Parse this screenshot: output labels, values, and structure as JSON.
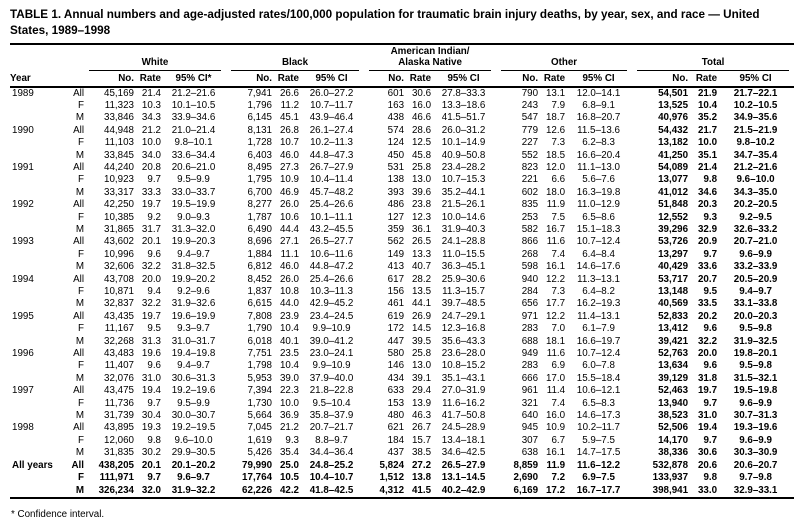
{
  "title": "TABLE 1. Annual numbers and age-adjusted rates/100,000 population for traumatic brain injury deaths, by year, sex, and race — United States, 1989–1998",
  "footnote": "* Confidence interval.",
  "colors": {
    "text": "#000000",
    "background": "#ffffff",
    "rule": "#000000"
  },
  "headers": {
    "year": "Year",
    "no": "No.",
    "rate": "Rate"
  },
  "groups": [
    {
      "label": "White",
      "ci_label": "95% CI*"
    },
    {
      "label": "Black",
      "ci_label": "95% CI"
    },
    {
      "label": "American Indian/\nAlaska Native",
      "ci_label": "95% CI"
    },
    {
      "label": "Other",
      "ci_label": "95% CI"
    },
    {
      "label": "Total",
      "ci_label": "95% CI"
    }
  ],
  "rows": [
    {
      "year": "1989",
      "sex": "All",
      "bold": false,
      "cells": [
        "45,169",
        "21.4",
        "21.2–21.6",
        "7,941",
        "26.6",
        "26.0–27.2",
        "601",
        "30.6",
        "27.8–33.3",
        "790",
        "13.1",
        "12.0–14.1",
        "54,501",
        "21.9",
        "21.7–22.1"
      ]
    },
    {
      "year": "",
      "sex": "F",
      "bold": false,
      "cells": [
        "11,323",
        "10.3",
        "10.1–10.5",
        "1,796",
        "11.2",
        "10.7–11.7",
        "163",
        "16.0",
        "13.3–18.6",
        "243",
        "7.9",
        "6.8–9.1",
        "13,525",
        "10.4",
        "10.2–10.5"
      ]
    },
    {
      "year": "",
      "sex": "M",
      "bold": false,
      "cells": [
        "33,846",
        "34.3",
        "33.9–34.6",
        "6,145",
        "45.1",
        "43.9–46.4",
        "438",
        "46.6",
        "41.5–51.7",
        "547",
        "18.7",
        "16.8–20.7",
        "40,976",
        "35.2",
        "34.9–35.6"
      ]
    },
    {
      "year": "1990",
      "sex": "All",
      "bold": false,
      "cells": [
        "44,948",
        "21.2",
        "21.0–21.4",
        "8,131",
        "26.8",
        "26.1–27.4",
        "574",
        "28.6",
        "26.0–31.2",
        "779",
        "12.6",
        "11.5–13.6",
        "54,432",
        "21.7",
        "21.5–21.9"
      ]
    },
    {
      "year": "",
      "sex": "F",
      "bold": false,
      "cells": [
        "11,103",
        "10.0",
        "9.8–10.1",
        "1,728",
        "10.7",
        "10.2–11.3",
        "124",
        "12.5",
        "10.1–14.9",
        "227",
        "7.3",
        "6.2–8.3",
        "13,182",
        "10.0",
        "9.8–10.2"
      ]
    },
    {
      "year": "",
      "sex": "M",
      "bold": false,
      "cells": [
        "33,845",
        "34.0",
        "33.6–34.4",
        "6,403",
        "46.0",
        "44.8–47.3",
        "450",
        "45.8",
        "40.9–50.8",
        "552",
        "18.5",
        "16.6–20.4",
        "41,250",
        "35.1",
        "34.7–35.4"
      ]
    },
    {
      "year": "1991",
      "sex": "All",
      "bold": false,
      "cells": [
        "44,240",
        "20.8",
        "20.6–21.0",
        "8,495",
        "27.3",
        "26.7–27.9",
        "531",
        "25.8",
        "23.4–28.2",
        "823",
        "12.0",
        "11.1–13.0",
        "54,089",
        "21.4",
        "21.2–21.6"
      ]
    },
    {
      "year": "",
      "sex": "F",
      "bold": false,
      "cells": [
        "10,923",
        "9.7",
        "9.5–9.9",
        "1,795",
        "10.9",
        "10.4–11.4",
        "138",
        "13.0",
        "10.7–15.3",
        "221",
        "6.6",
        "5.6–7.6",
        "13,077",
        "9.8",
        "9.6–10.0"
      ]
    },
    {
      "year": "",
      "sex": "M",
      "bold": false,
      "cells": [
        "33,317",
        "33.3",
        "33.0–33.7",
        "6,700",
        "46.9",
        "45.7–48.2",
        "393",
        "39.6",
        "35.2–44.1",
        "602",
        "18.0",
        "16.3–19.8",
        "41,012",
        "34.6",
        "34.3–35.0"
      ]
    },
    {
      "year": "1992",
      "sex": "All",
      "bold": false,
      "cells": [
        "42,250",
        "19.7",
        "19.5–19.9",
        "8,277",
        "26.0",
        "25.4–26.6",
        "486",
        "23.8",
        "21.5–26.1",
        "835",
        "11.9",
        "11.0–12.9",
        "51,848",
        "20.3",
        "20.2–20.5"
      ]
    },
    {
      "year": "",
      "sex": "F",
      "bold": false,
      "cells": [
        "10,385",
        "9.2",
        "9.0–9.3",
        "1,787",
        "10.6",
        "10.1–11.1",
        "127",
        "12.3",
        "10.0–14.6",
        "253",
        "7.5",
        "6.5–8.6",
        "12,552",
        "9.3",
        "9.2–9.5"
      ]
    },
    {
      "year": "",
      "sex": "M",
      "bold": false,
      "cells": [
        "31,865",
        "31.7",
        "31.3–32.0",
        "6,490",
        "44.4",
        "43.2–45.5",
        "359",
        "36.1",
        "31.9–40.3",
        "582",
        "16.7",
        "15.1–18.3",
        "39,296",
        "32.9",
        "32.6–33.2"
      ]
    },
    {
      "year": "1993",
      "sex": "All",
      "bold": false,
      "cells": [
        "43,602",
        "20.1",
        "19.9–20.3",
        "8,696",
        "27.1",
        "26.5–27.7",
        "562",
        "26.5",
        "24.1–28.8",
        "866",
        "11.6",
        "10.7–12.4",
        "53,726",
        "20.9",
        "20.7–21.0"
      ]
    },
    {
      "year": "",
      "sex": "F",
      "bold": false,
      "cells": [
        "10,996",
        "9.6",
        "9.4–9.7",
        "1,884",
        "11.1",
        "10.6–11.6",
        "149",
        "13.3",
        "11.0–15.5",
        "268",
        "7.4",
        "6.4–8.4",
        "13,297",
        "9.7",
        "9.6–9.9"
      ]
    },
    {
      "year": "",
      "sex": "M",
      "bold": false,
      "cells": [
        "32,606",
        "32.2",
        "31.8–32.5",
        "6,812",
        "46.0",
        "44.8–47.2",
        "413",
        "40.7",
        "36.3–45.1",
        "598",
        "16.1",
        "14.6–17.6",
        "40,429",
        "33.6",
        "33.2–33.9"
      ]
    },
    {
      "year": "1994",
      "sex": "All",
      "bold": false,
      "cells": [
        "43,708",
        "20.0",
        "19.9–20.2",
        "8,452",
        "26.0",
        "25.4–26.6",
        "617",
        "28.2",
        "25.9–30.6",
        "940",
        "12.2",
        "11.3–13.1",
        "53,717",
        "20.7",
        "20.5–20.9"
      ]
    },
    {
      "year": "",
      "sex": "F",
      "bold": false,
      "cells": [
        "10,871",
        "9.4",
        "9.2–9.6",
        "1,837",
        "10.8",
        "10.3–11.3",
        "156",
        "13.5",
        "11.3–15.7",
        "284",
        "7.3",
        "6.4–8.2",
        "13,148",
        "9.5",
        "9.4–9.7"
      ]
    },
    {
      "year": "",
      "sex": "M",
      "bold": false,
      "cells": [
        "32,837",
        "32.2",
        "31.9–32.6",
        "6,615",
        "44.0",
        "42.9–45.2",
        "461",
        "44.1",
        "39.7–48.5",
        "656",
        "17.7",
        "16.2–19.3",
        "40,569",
        "33.5",
        "33.1–33.8"
      ]
    },
    {
      "year": "1995",
      "sex": "All",
      "bold": false,
      "cells": [
        "43,435",
        "19.7",
        "19.6–19.9",
        "7,808",
        "23.9",
        "23.4–24.5",
        "619",
        "26.9",
        "24.7–29.1",
        "971",
        "12.2",
        "11.4–13.1",
        "52,833",
        "20.2",
        "20.0–20.3"
      ]
    },
    {
      "year": "",
      "sex": "F",
      "bold": false,
      "cells": [
        "11,167",
        "9.5",
        "9.3–9.7",
        "1,790",
        "10.4",
        "9.9–10.9",
        "172",
        "14.5",
        "12.3–16.8",
        "283",
        "7.0",
        "6.1–7.9",
        "13,412",
        "9.6",
        "9.5–9.8"
      ]
    },
    {
      "year": "",
      "sex": "M",
      "bold": false,
      "cells": [
        "32,268",
        "31.3",
        "31.0–31.7",
        "6,018",
        "40.1",
        "39.0–41.2",
        "447",
        "39.5",
        "35.6–43.3",
        "688",
        "18.1",
        "16.6–19.7",
        "39,421",
        "32.2",
        "31.9–32.5"
      ]
    },
    {
      "year": "1996",
      "sex": "All",
      "bold": false,
      "cells": [
        "43,483",
        "19.6",
        "19.4–19.8",
        "7,751",
        "23.5",
        "23.0–24.1",
        "580",
        "25.8",
        "23.6–28.0",
        "949",
        "11.6",
        "10.7–12.4",
        "52,763",
        "20.0",
        "19.8–20.1"
      ]
    },
    {
      "year": "",
      "sex": "F",
      "bold": false,
      "cells": [
        "11,407",
        "9.6",
        "9.4–9.7",
        "1,798",
        "10.4",
        "9.9–10.9",
        "146",
        "13.0",
        "10.8–15.2",
        "283",
        "6.9",
        "6.0–7.8",
        "13,634",
        "9.6",
        "9.5–9.8"
      ]
    },
    {
      "year": "",
      "sex": "M",
      "bold": false,
      "cells": [
        "32,076",
        "31.0",
        "30.6–31.3",
        "5,953",
        "39.0",
        "37.9–40.0",
        "434",
        "39.1",
        "35.1–43.1",
        "666",
        "17.0",
        "15.5–18.4",
        "39,129",
        "31.8",
        "31.5–32.1"
      ]
    },
    {
      "year": "1997",
      "sex": "All",
      "bold": false,
      "cells": [
        "43,475",
        "19.4",
        "19.2–19.6",
        "7,394",
        "22.3",
        "21.8–22.8",
        "633",
        "29.4",
        "27.0–31.9",
        "961",
        "11.4",
        "10.6–12.1",
        "52,463",
        "19.7",
        "19.5–19.8"
      ]
    },
    {
      "year": "",
      "sex": "F",
      "bold": false,
      "cells": [
        "11,736",
        "9.7",
        "9.5–9.9",
        "1,730",
        "10.0",
        "9.5–10.4",
        "153",
        "13.9",
        "11.6–16.2",
        "321",
        "7.4",
        "6.5–8.3",
        "13,940",
        "9.7",
        "9.6–9.9"
      ]
    },
    {
      "year": "",
      "sex": "M",
      "bold": false,
      "cells": [
        "31,739",
        "30.4",
        "30.0–30.7",
        "5,664",
        "36.9",
        "35.8–37.9",
        "480",
        "46.3",
        "41.7–50.8",
        "640",
        "16.0",
        "14.6–17.3",
        "38,523",
        "31.0",
        "30.7–31.3"
      ]
    },
    {
      "year": "1998",
      "sex": "All",
      "bold": false,
      "cells": [
        "43,895",
        "19.3",
        "19.2–19.5",
        "7,045",
        "21.2",
        "20.7–21.7",
        "621",
        "26.7",
        "24.5–28.9",
        "945",
        "10.9",
        "10.2–11.7",
        "52,506",
        "19.4",
        "19.3–19.6"
      ]
    },
    {
      "year": "",
      "sex": "F",
      "bold": false,
      "cells": [
        "12,060",
        "9.8",
        "9.6–10.0",
        "1,619",
        "9.3",
        "8.8–9.7",
        "184",
        "15.7",
        "13.4–18.1",
        "307",
        "6.7",
        "5.9–7.5",
        "14,170",
        "9.7",
        "9.6–9.9"
      ]
    },
    {
      "year": "",
      "sex": "M",
      "bold": false,
      "cells": [
        "31,835",
        "30.2",
        "29.9–30.5",
        "5,426",
        "35.4",
        "34.4–36.4",
        "437",
        "38.5",
        "34.6–42.5",
        "638",
        "16.1",
        "14.7–17.5",
        "38,336",
        "30.6",
        "30.3–30.9"
      ]
    },
    {
      "year": "All years",
      "sex": "All",
      "bold": true,
      "cells": [
        "438,205",
        "20.1",
        "20.1–20.2",
        "79,990",
        "25.0",
        "24.8–25.2",
        "5,824",
        "27.2",
        "26.5–27.9",
        "8,859",
        "11.9",
        "11.6–12.2",
        "532,878",
        "20.6",
        "20.6–20.7"
      ]
    },
    {
      "year": "",
      "sex": "F",
      "bold": true,
      "cells": [
        "111,971",
        "9.7",
        "9.6–9.7",
        "17,764",
        "10.5",
        "10.4–10.7",
        "1,512",
        "13.8",
        "13.1–14.5",
        "2,690",
        "7.2",
        "6.9–7.5",
        "133,937",
        "9.8",
        "9.7–9.8"
      ]
    },
    {
      "year": "",
      "sex": "M",
      "bold": true,
      "cells": [
        "326,234",
        "32.0",
        "31.9–32.2",
        "62,226",
        "42.2",
        "41.8–42.5",
        "4,312",
        "41.5",
        "40.2–42.9",
        "6,169",
        "17.2",
        "16.7–17.7",
        "398,941",
        "33.0",
        "32.9–33.1"
      ]
    }
  ]
}
